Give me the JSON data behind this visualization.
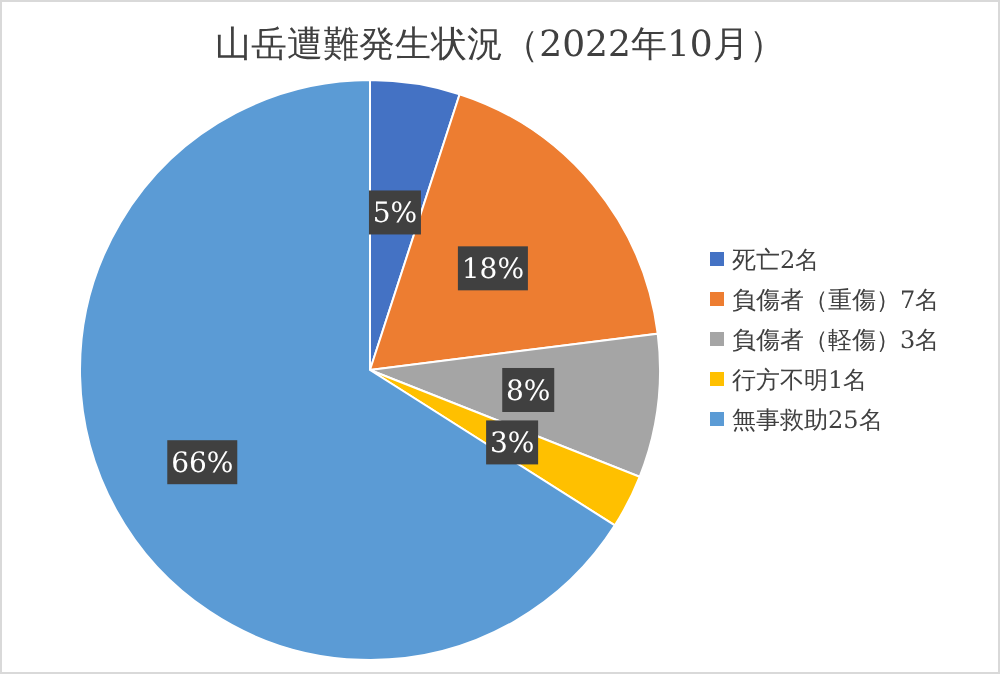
{
  "chart_data": {
    "type": "pie",
    "title": "山岳遭難発生状況（2022年10月）",
    "categories": [
      "死亡2名",
      "負傷者（重傷）7名",
      "負傷者（軽傷）3名",
      "行方不明1名",
      "無事救助25名"
    ],
    "values": [
      5,
      18,
      8,
      3,
      66
    ],
    "colors": [
      "#4472c4",
      "#ed7d31",
      "#a5a5a5",
      "#ffc000",
      "#5b9bd5"
    ],
    "value_labels": [
      "5%",
      "18%",
      "8%",
      "3%",
      "66%"
    ],
    "legend": "right"
  }
}
